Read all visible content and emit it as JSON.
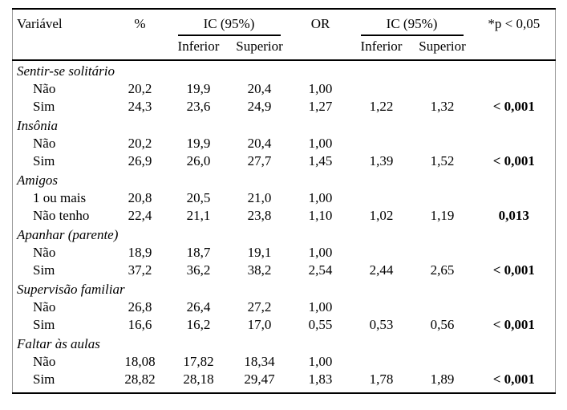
{
  "colors": {
    "background": "#ffffff",
    "text": "#000000",
    "rule": "#000000",
    "side_border": "#9a9a9a"
  },
  "table": {
    "headers": {
      "variable": "Variável",
      "percent": "%",
      "ci_group_1": "IC (95%)",
      "or": "OR",
      "ci_group_2": "IC (95%)",
      "p_threshold": "*p < 0,05",
      "ci1_lower": "Inferior",
      "ci1_upper": "Superior",
      "ci2_lower": "Inferior",
      "ci2_upper": "Superior"
    },
    "sections": [
      {
        "name": "Sentir-se solitário",
        "rows": [
          {
            "label": "Não",
            "pct": "20,2",
            "inf1": "19,9",
            "sup1": "20,4",
            "or": "1,00",
            "inf2": "",
            "sup2": "",
            "p": ""
          },
          {
            "label": "Sim",
            "pct": "24,3",
            "inf1": "23,6",
            "sup1": "24,9",
            "or": "1,27",
            "inf2": "1,22",
            "sup2": "1,32",
            "p": "< 0,001"
          }
        ]
      },
      {
        "name": "Insônia",
        "rows": [
          {
            "label": "Não",
            "pct": "20,2",
            "inf1": "19,9",
            "sup1": "20,4",
            "or": "1,00",
            "inf2": "",
            "sup2": "",
            "p": ""
          },
          {
            "label": "Sim",
            "pct": "26,9",
            "inf1": "26,0",
            "sup1": "27,7",
            "or": "1,45",
            "inf2": "1,39",
            "sup2": "1,52",
            "p": "< 0,001"
          }
        ]
      },
      {
        "name": "Amigos",
        "rows": [
          {
            "label": "1 ou mais",
            "pct": "20,8",
            "inf1": "20,5",
            "sup1": "21,0",
            "or": "1,00",
            "inf2": "",
            "sup2": "",
            "p": ""
          },
          {
            "label": "Não tenho",
            "pct": "22,4",
            "inf1": "21,1",
            "sup1": "23,8",
            "or": "1,10",
            "inf2": "1,02",
            "sup2": "1,19",
            "p": "0,013"
          }
        ]
      },
      {
        "name": "Apanhar (parente)",
        "rows": [
          {
            "label": "Não",
            "pct": "18,9",
            "inf1": "18,7",
            "sup1": "19,1",
            "or": "1,00",
            "inf2": "",
            "sup2": "",
            "p": ""
          },
          {
            "label": "Sim",
            "pct": "37,2",
            "inf1": "36,2",
            "sup1": "38,2",
            "or": "2,54",
            "inf2": "2,44",
            "sup2": "2,65",
            "p": "< 0,001"
          }
        ]
      },
      {
        "name": "Supervisão familiar",
        "rows": [
          {
            "label": "Não",
            "pct": "26,8",
            "inf1": "26,4",
            "sup1": "27,2",
            "or": "1,00",
            "inf2": "",
            "sup2": "",
            "p": ""
          },
          {
            "label": "Sim",
            "pct": "16,6",
            "inf1": "16,2",
            "sup1": "17,0",
            "or": "0,55",
            "inf2": "0,53",
            "sup2": "0,56",
            "p": "< 0,001"
          }
        ]
      },
      {
        "name": "Faltar às aulas",
        "rows": [
          {
            "label": "Não",
            "pct": "18,08",
            "inf1": "17,82",
            "sup1": "18,34",
            "or": "1,00",
            "inf2": "",
            "sup2": "",
            "p": ""
          },
          {
            "label": "Sim",
            "pct": "28,82",
            "inf1": "28,18",
            "sup1": "29,47",
            "or": "1,83",
            "inf2": "1,78",
            "sup2": "1,89",
            "p": "< 0,001"
          }
        ]
      }
    ]
  }
}
